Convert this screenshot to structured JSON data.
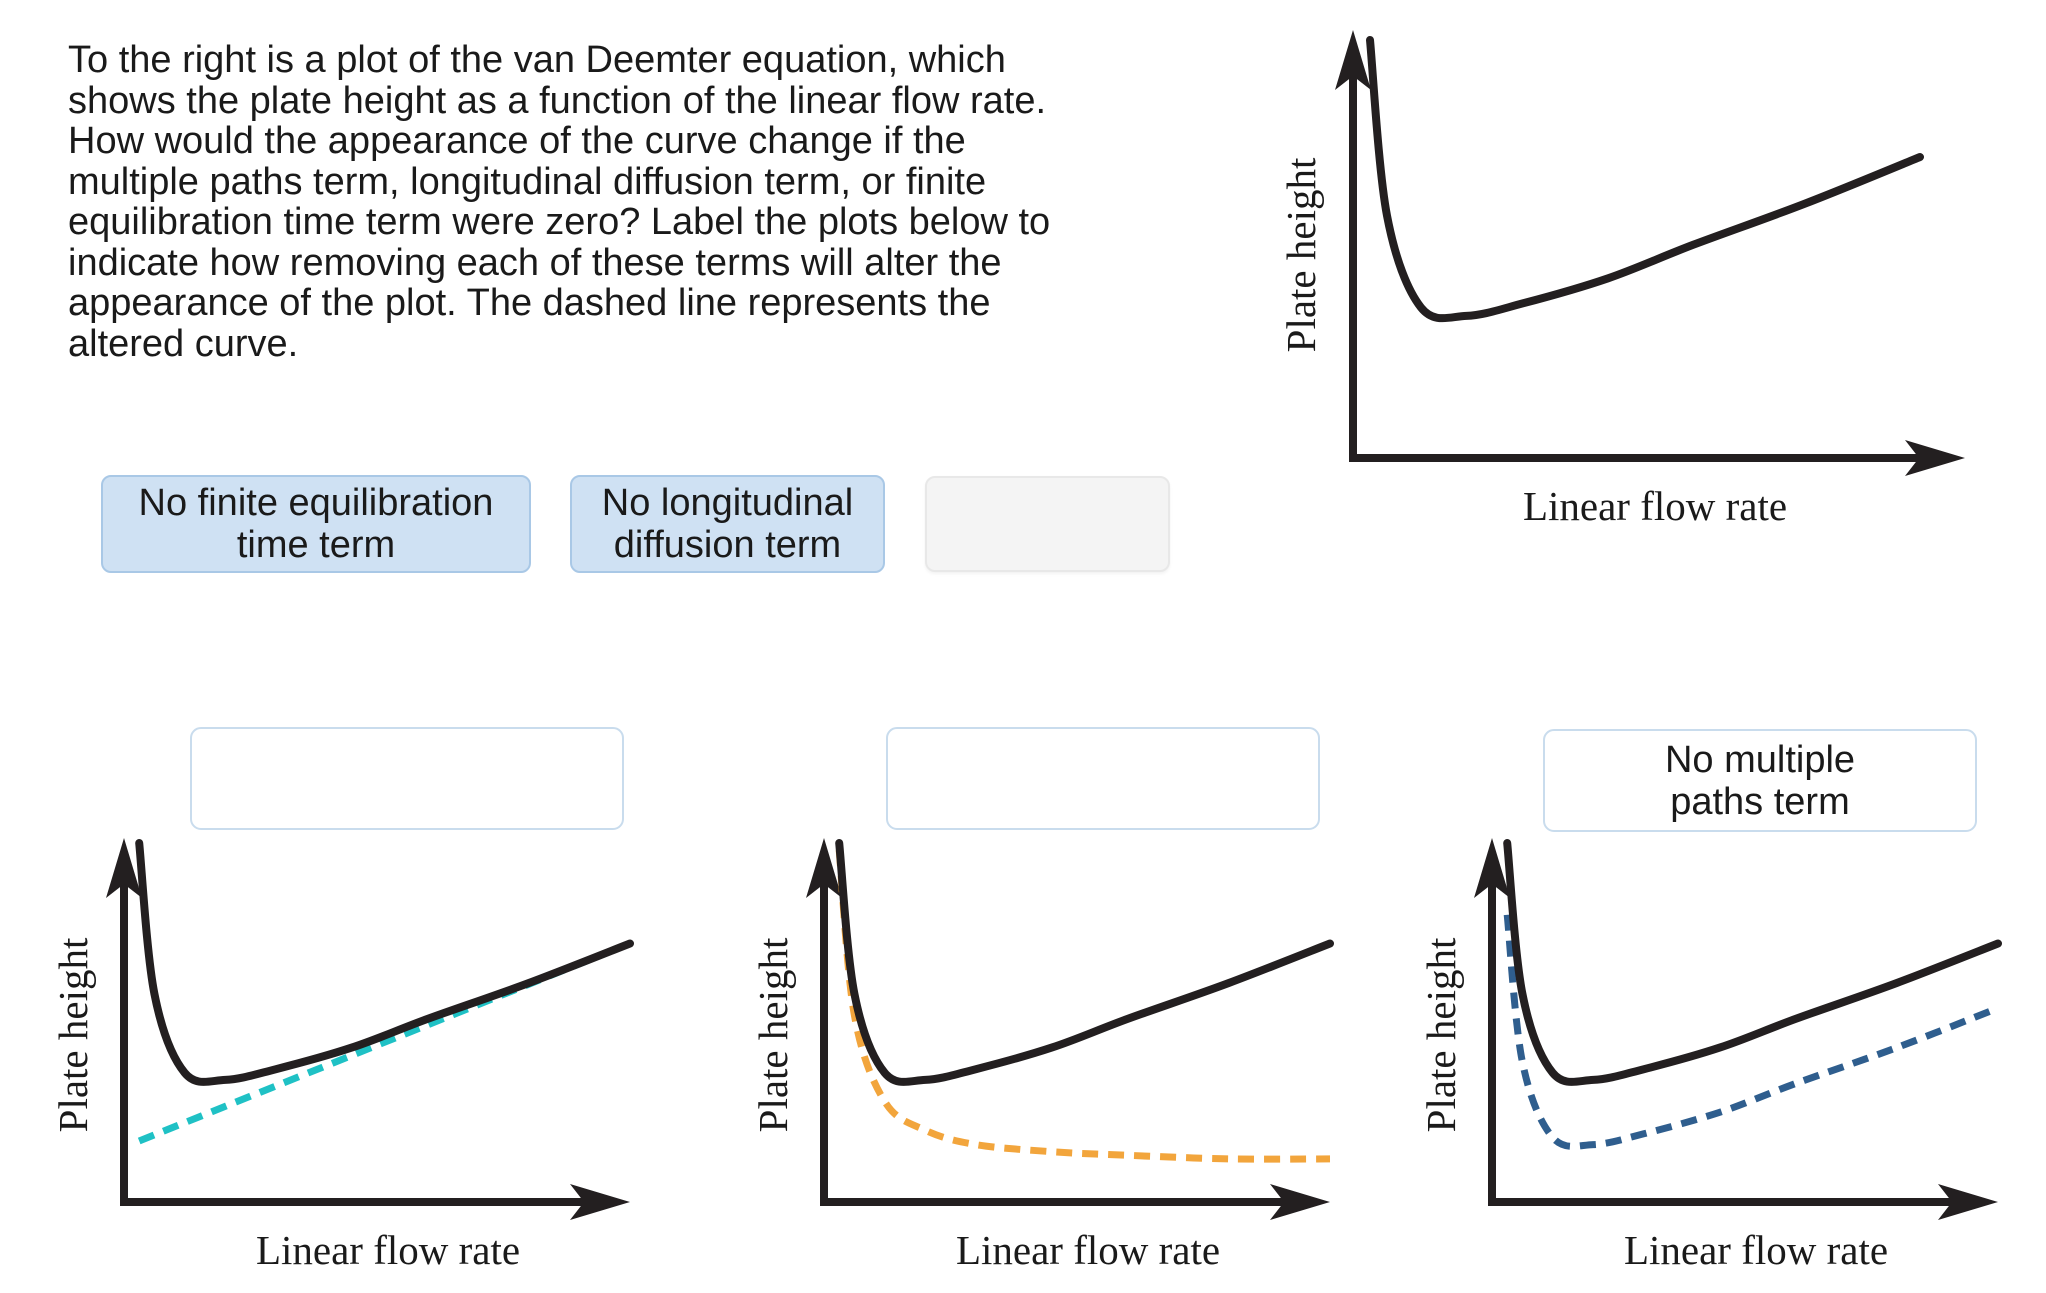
{
  "question": {
    "lines": [
      "To the right is a plot of the van Deemter equation, which",
      "shows the plate height as a function of the linear flow rate.",
      "How would the appearance of the curve change if the",
      "multiple paths term, longitudinal diffusion term, or finite",
      "equilibration time term were zero? Label the plots below to",
      "indicate how removing each of these terms will alter the",
      "appearance of the plot. The dashed line represents the",
      "altered curve."
    ]
  },
  "bank": {
    "chips": [
      {
        "line1": "No finite equilibration",
        "line2": "time term"
      },
      {
        "line1": "No longitudinal",
        "line2": "diffusion term"
      },
      {
        "line1": "",
        "line2": ""
      }
    ]
  },
  "targets": [
    {
      "line1": "",
      "line2": ""
    },
    {
      "line1": "",
      "line2": ""
    },
    {
      "line1": "No multiple",
      "line2": "paths term"
    }
  ],
  "axes": {
    "xlabel": "Linear flow rate",
    "ylabel": "Plate height"
  },
  "colors": {
    "curve": "#231f20",
    "dash_teal": "#1fc1c5",
    "dash_orange": "#f2a53c",
    "dash_blue": "#2f5e8e",
    "chip_fill": "#cfe1f3"
  },
  "chart_data": [
    {
      "type": "line",
      "xlabel": "Linear flow rate",
      "ylabel": "Plate height",
      "series": [
        {
          "x": [
            0.03,
            0.06,
            0.12,
            0.2,
            0.3,
            0.45,
            0.6,
            0.8,
            1.0
          ],
          "y": [
            1.0,
            0.58,
            0.36,
            0.34,
            0.37,
            0.43,
            0.51,
            0.61,
            0.72
          ]
        }
      ]
    },
    {
      "type": "line",
      "xlabel": "Linear flow rate",
      "ylabel": "Plate height",
      "series": [
        {
          "x": [
            0.03,
            0.06,
            0.12,
            0.2,
            0.3,
            0.45,
            0.6,
            0.8,
            1.0
          ],
          "y": [
            1.0,
            0.58,
            0.36,
            0.34,
            0.37,
            0.43,
            0.51,
            0.61,
            0.72
          ]
        },
        {
          "x": [
            0.03,
            1.0
          ],
          "y": [
            0.17,
            0.72
          ]
        }
      ]
    },
    {
      "type": "line",
      "xlabel": "Linear flow rate",
      "ylabel": "Plate height",
      "series": [
        {
          "x": [
            0.03,
            0.06,
            0.12,
            0.2,
            0.3,
            0.45,
            0.6,
            0.8,
            1.0
          ],
          "y": [
            1.0,
            0.58,
            0.36,
            0.34,
            0.37,
            0.43,
            0.51,
            0.61,
            0.72
          ]
        },
        {
          "x": [
            0.03,
            0.06,
            0.12,
            0.2,
            0.3,
            0.45,
            0.6,
            0.8,
            1.0
          ],
          "y": [
            0.98,
            0.52,
            0.28,
            0.2,
            0.16,
            0.14,
            0.13,
            0.12,
            0.12
          ]
        }
      ]
    },
    {
      "type": "line",
      "xlabel": "Linear flow rate",
      "ylabel": "Plate height",
      "series": [
        {
          "x": [
            0.03,
            0.06,
            0.12,
            0.2,
            0.3,
            0.45,
            0.6,
            0.8,
            1.0
          ],
          "y": [
            1.0,
            0.58,
            0.36,
            0.34,
            0.37,
            0.43,
            0.51,
            0.61,
            0.72
          ]
        },
        {
          "x": [
            0.03,
            0.06,
            0.12,
            0.2,
            0.3,
            0.45,
            0.6,
            0.8,
            1.0
          ],
          "y": [
            0.8,
            0.39,
            0.18,
            0.16,
            0.19,
            0.25,
            0.33,
            0.43,
            0.54
          ]
        }
      ]
    }
  ]
}
